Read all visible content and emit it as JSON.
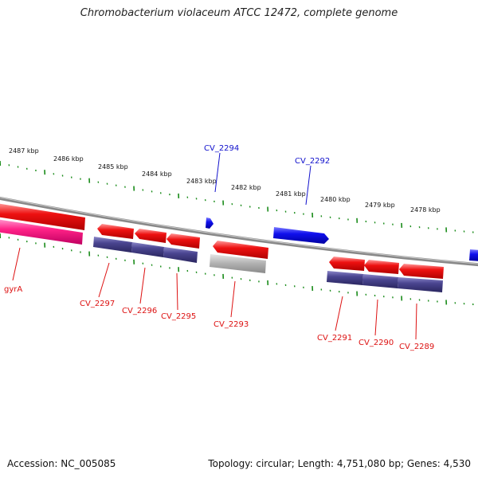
{
  "title": "Chromobacterium violaceum ATCC 12472, complete genome",
  "accession": "Accession: NC_005085",
  "summary": "Topology: circular; Length: 4,751,080 bp; Genes: 4,530",
  "colors": {
    "forward_gene": "#1010ee",
    "reverse_gene": "#ee1111",
    "rna_gene": "#ff2288",
    "pseudo_gene": "#aaaaaa",
    "feature_band": "#4a4590",
    "tick": "#1a8c1a",
    "backbone": "#888888"
  },
  "ruler_labels": [
    "2487 kbp",
    "2486 kbp",
    "2485 kbp",
    "2484 kbp",
    "2483 kbp",
    "2482 kbp",
    "2481 kbp",
    "2480 kbp",
    "2479 kbp",
    "2478 kbp"
  ],
  "forward_gene_labels": [
    "CV_2294",
    "CV_2292"
  ],
  "reverse_gene_labels": [
    "gyrA",
    "CV_2297",
    "CV_2296",
    "CV_2295",
    "CV_2293",
    "CV_2291",
    "CV_2290",
    "CV_2289"
  ]
}
